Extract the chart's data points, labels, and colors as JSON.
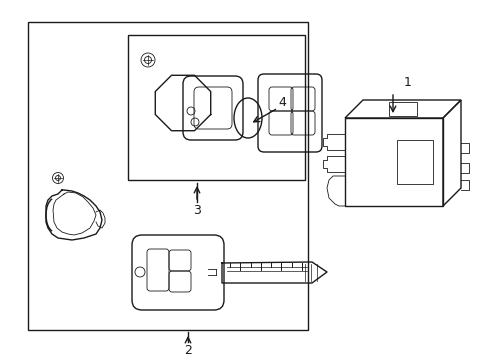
{
  "bg_color": "#ffffff",
  "line_color": "#1a1a1a",
  "line_width": 1.0,
  "thin_line": 0.6,
  "fig_width": 4.89,
  "fig_height": 3.6,
  "dpi": 100
}
